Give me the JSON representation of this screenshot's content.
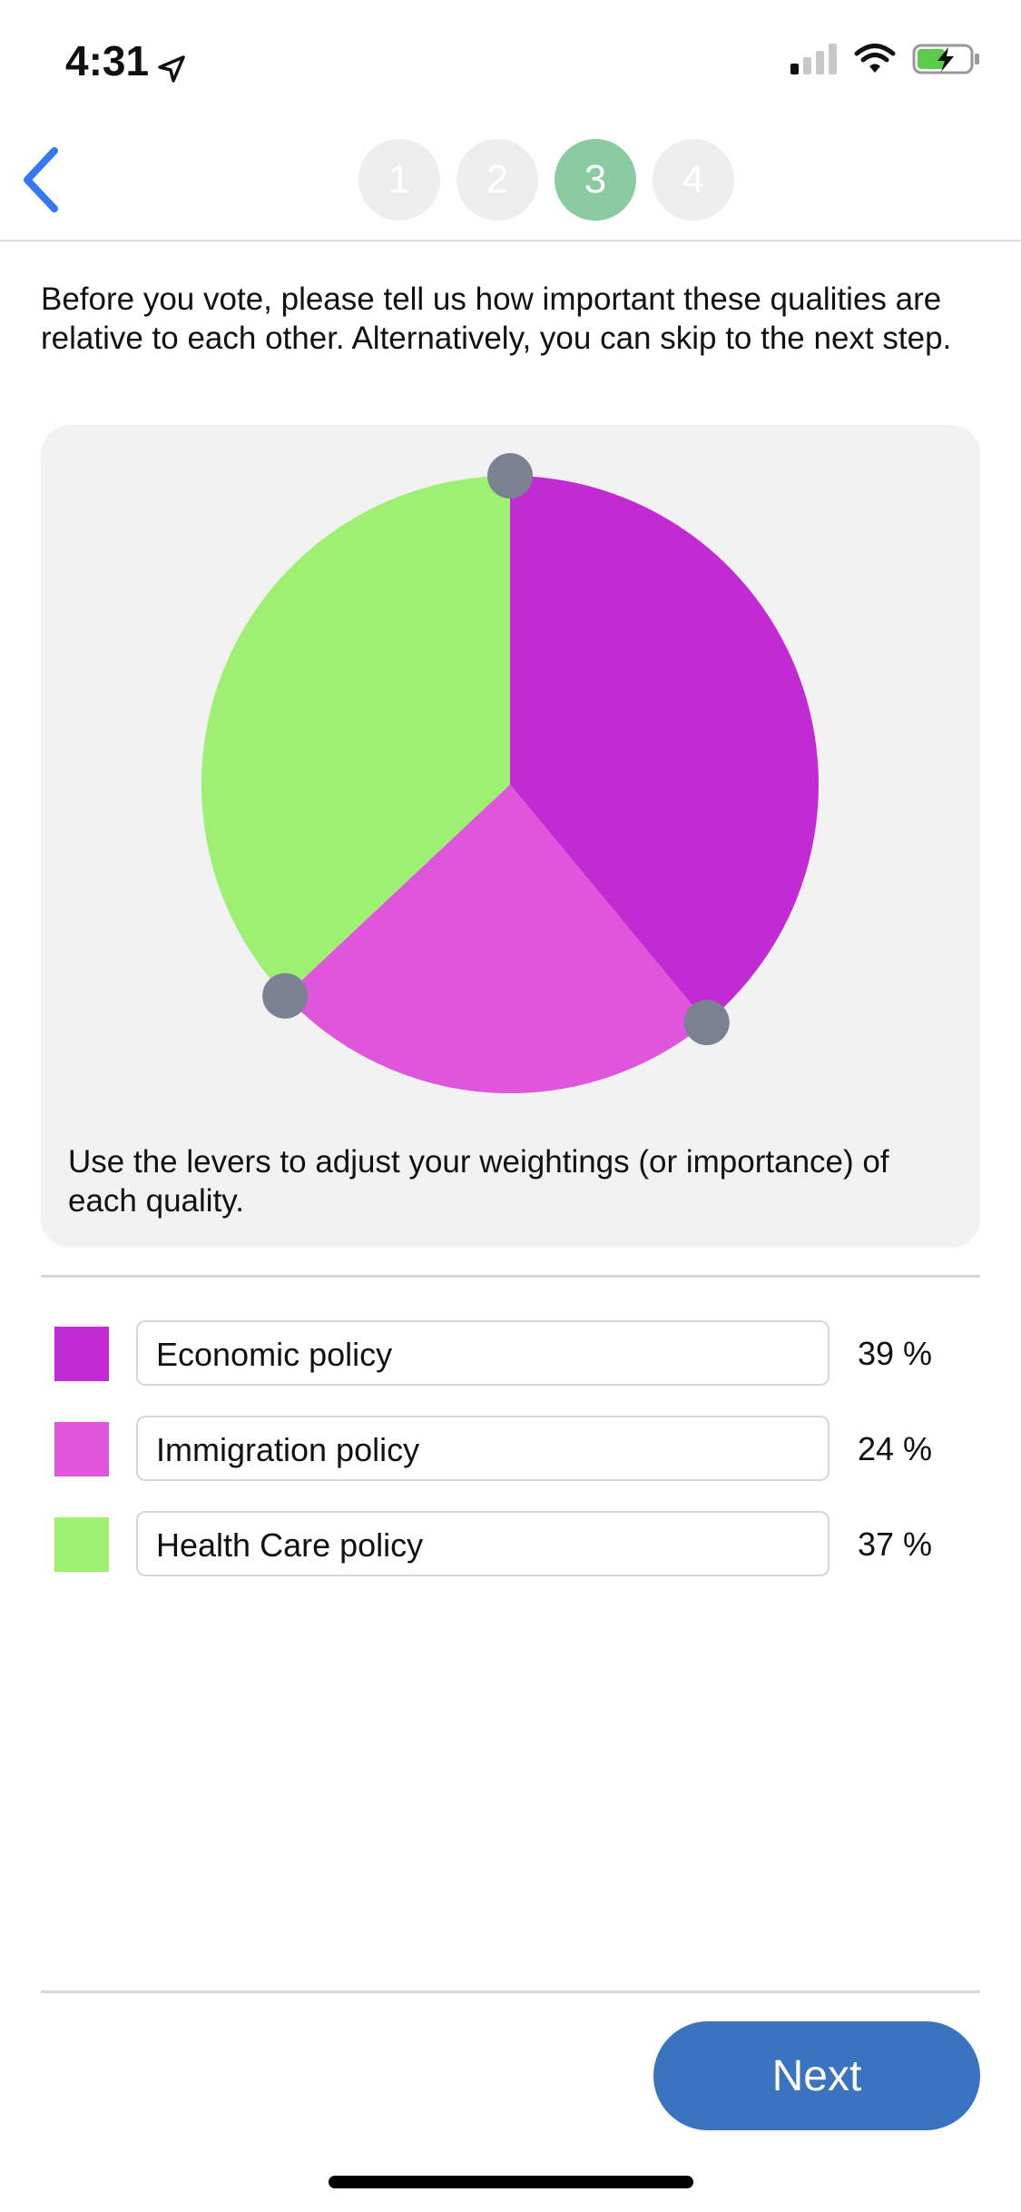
{
  "status_bar": {
    "time": "4:31",
    "location_icon": "location-arrow-icon",
    "signal_icon": "cellular-signal-icon",
    "wifi_icon": "wifi-icon",
    "battery_icon": "battery-charging-icon"
  },
  "header": {
    "back_icon": "chevron-left-icon",
    "steps": [
      {
        "label": "1",
        "active": false
      },
      {
        "label": "2",
        "active": false
      },
      {
        "label": "3",
        "active": true
      },
      {
        "label": "4",
        "active": false
      }
    ]
  },
  "intro_text": "Before you vote, please tell us how important these qualities are relative to each other. Alternatively, you can skip to the next step.",
  "chart_data": {
    "type": "pie",
    "slices": [
      {
        "label": "Economic policy",
        "value": 39,
        "color": "#c22bd4"
      },
      {
        "label": "Immigration policy",
        "value": 24,
        "color": "#df55dc"
      },
      {
        "label": "Health Care policy",
        "value": 37,
        "color": "#9df072"
      }
    ],
    "lever_color": "#7a8291"
  },
  "chart_hint": "Use the levers to adjust your weightings (or importance) of each quality.",
  "qualities": [
    {
      "name": "Economic policy",
      "percent": "39 %",
      "color": "#c22bd4"
    },
    {
      "name": "Immigration policy",
      "percent": "24 %",
      "color": "#df55dc"
    },
    {
      "name": "Health Care policy",
      "percent": "37 %",
      "color": "#9df072"
    }
  ],
  "footer": {
    "next_label": "Next"
  }
}
